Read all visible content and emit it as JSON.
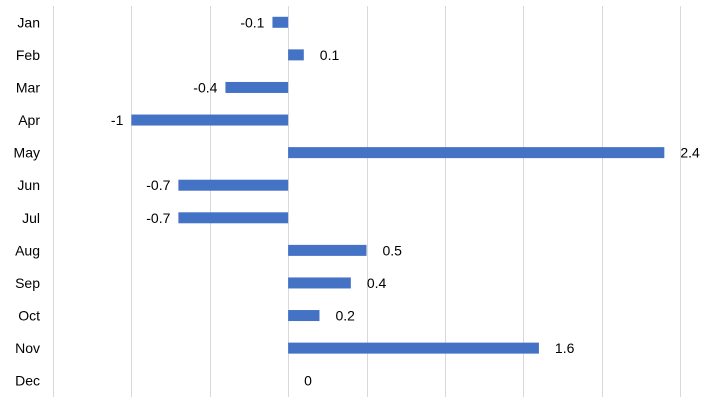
{
  "chart_data": {
    "type": "bar",
    "orientation": "horizontal",
    "categories": [
      "Jan",
      "Feb",
      "Mar",
      "Apr",
      "May",
      "Jun",
      "Jul",
      "Aug",
      "Sep",
      "Oct",
      "Nov",
      "Dec"
    ],
    "values": [
      -0.1,
      0.1,
      -0.4,
      -1,
      2.4,
      -0.7,
      -0.7,
      0.5,
      0.4,
      0.2,
      1.6,
      0
    ],
    "data_labels": [
      "-0.1",
      "0.1",
      "-0.4",
      "-1",
      "2.4",
      "-0.7",
      "-0.7",
      "0.5",
      "0.4",
      "0.2",
      "1.6",
      "0"
    ],
    "xlim": [
      -1.5,
      2.5
    ],
    "grid": true,
    "legend": "none",
    "bar_color": "#4472c4",
    "grid_color": "#d9d9d9"
  }
}
